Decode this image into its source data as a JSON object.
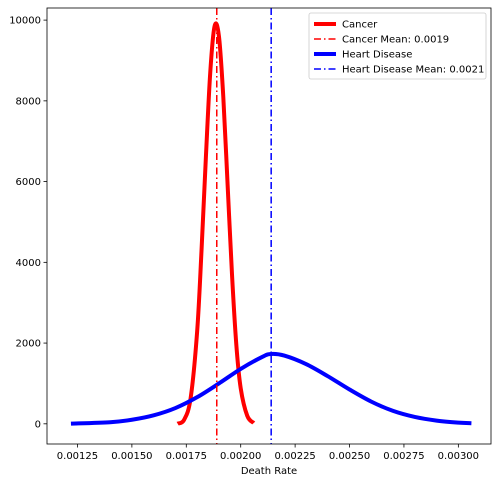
{
  "chart_data": {
    "type": "line",
    "title": "",
    "xlabel": "Death Rate",
    "ylabel": "",
    "xlim": [
      0.00111,
      0.00315
    ],
    "ylim": [
      -500,
      10300
    ],
    "xticks": [
      0.00125,
      0.0015,
      0.00175,
      0.002,
      0.00225,
      0.0025,
      0.00275,
      0.003
    ],
    "xtick_labels": [
      "0.00125",
      "0.00150",
      "0.00175",
      "0.00200",
      "0.00225",
      "0.00250",
      "0.00275",
      "0.00300"
    ],
    "yticks": [
      0,
      2000,
      4000,
      6000,
      8000,
      10000
    ],
    "ytick_labels": [
      "0",
      "2000",
      "4000",
      "6000",
      "8000",
      "10000"
    ],
    "grid": false,
    "legend_position": "top-right",
    "series": [
      {
        "name": "Cancer",
        "color": "#ff0000",
        "style": "solid",
        "x": [
          0.00171,
          0.00174,
          0.00177,
          0.0018,
          0.00182,
          0.00184,
          0.00186,
          0.00188,
          0.0019,
          0.00192,
          0.00194,
          0.00196,
          0.00198,
          0.002,
          0.00203,
          0.00206
        ],
        "y": [
          5,
          100,
          640,
          2300,
          4300,
          6600,
          8700,
          9850,
          9600,
          8100,
          5900,
          3700,
          1950,
          880,
          200,
          20
        ]
      },
      {
        "name": "Heart Disease",
        "color": "#0000ff",
        "style": "solid",
        "x": [
          0.00122,
          0.0014,
          0.0015,
          0.0016,
          0.0017,
          0.0018,
          0.0019,
          0.002,
          0.0021,
          0.00214,
          0.0022,
          0.0023,
          0.0024,
          0.0025,
          0.0026,
          0.0027,
          0.0028,
          0.0029,
          0.003,
          0.00306
        ],
        "y": [
          5,
          40,
          100,
          210,
          390,
          660,
          1000,
          1360,
          1660,
          1730,
          1690,
          1480,
          1180,
          850,
          550,
          320,
          170,
          80,
          30,
          15
        ]
      }
    ],
    "vlines": [
      {
        "name": "Cancer Mean: 0.0019",
        "x": 0.00189,
        "color": "#ff0000",
        "style": "dashdot"
      },
      {
        "name": "Heart Disease Mean: 0.0021",
        "x": 0.00214,
        "color": "#0000ff",
        "style": "dashdot"
      }
    ]
  }
}
